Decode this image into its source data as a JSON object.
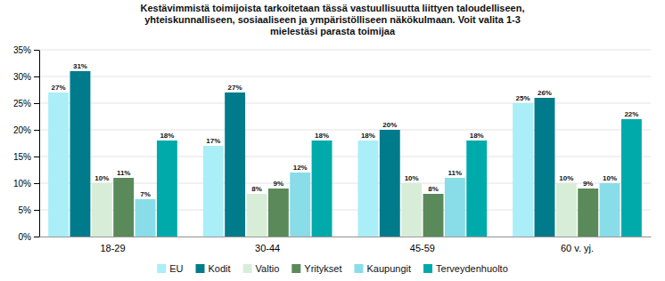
{
  "chart_data": {
    "type": "bar",
    "title": "Kestävimmistä toimijoista tarkoitetaan tässä vastuullisuutta liittyen taloudelliseen,\nyhteiskunnalliseen, sosiaaliseen ja ympäristölliseen näkökulmaan. Voit valita 1-3\nmielestäsi parasta toimijaa",
    "categories": [
      "18-29",
      "30-44",
      "45-59",
      "60 v. yj."
    ],
    "series": [
      {
        "name": "EU",
        "color": "#AAEEF8",
        "values": [
          27,
          17,
          18,
          25
        ],
        "value_labels": [
          "27%",
          "17%",
          "18%",
          "25%"
        ]
      },
      {
        "name": "Kodit",
        "color": "#007B8C",
        "values": [
          31,
          27,
          20,
          26
        ],
        "value_labels": [
          "31%",
          "27%",
          "20%",
          "26%"
        ]
      },
      {
        "name": "Valtio",
        "color": "#D8EDD8",
        "values": [
          10,
          8,
          10,
          10
        ],
        "value_labels": [
          "10%",
          "8%",
          "10%",
          "10%"
        ]
      },
      {
        "name": "Yritykset",
        "color": "#5A8A5A",
        "values": [
          11,
          9,
          8,
          9
        ],
        "value_labels": [
          "11%",
          "9%",
          "8%",
          "9%"
        ]
      },
      {
        "name": "Kaupungit",
        "color": "#88DDE8",
        "values": [
          7,
          12,
          11,
          10
        ],
        "value_labels": [
          "7%",
          "12%",
          "11%",
          "10%"
        ]
      },
      {
        "name": "Terveydenhuolto",
        "color": "#00AAAA",
        "values": [
          18,
          18,
          18,
          22
        ],
        "value_labels": [
          "18%",
          "18%",
          "18%",
          "22%"
        ]
      }
    ],
    "ylim": [
      0,
      35
    ],
    "yticks": [
      {
        "value": 0,
        "label": "0%"
      },
      {
        "value": 5,
        "label": "5%"
      },
      {
        "value": 10,
        "label": "10%"
      },
      {
        "value": 15,
        "label": "15%"
      },
      {
        "value": 20,
        "label": "20%"
      },
      {
        "value": 25,
        "label": "25%"
      },
      {
        "value": 30,
        "label": "30%"
      },
      {
        "value": 35,
        "label": "35%"
      }
    ],
    "grid": true,
    "legend": "bottom",
    "data_labels": true
  }
}
